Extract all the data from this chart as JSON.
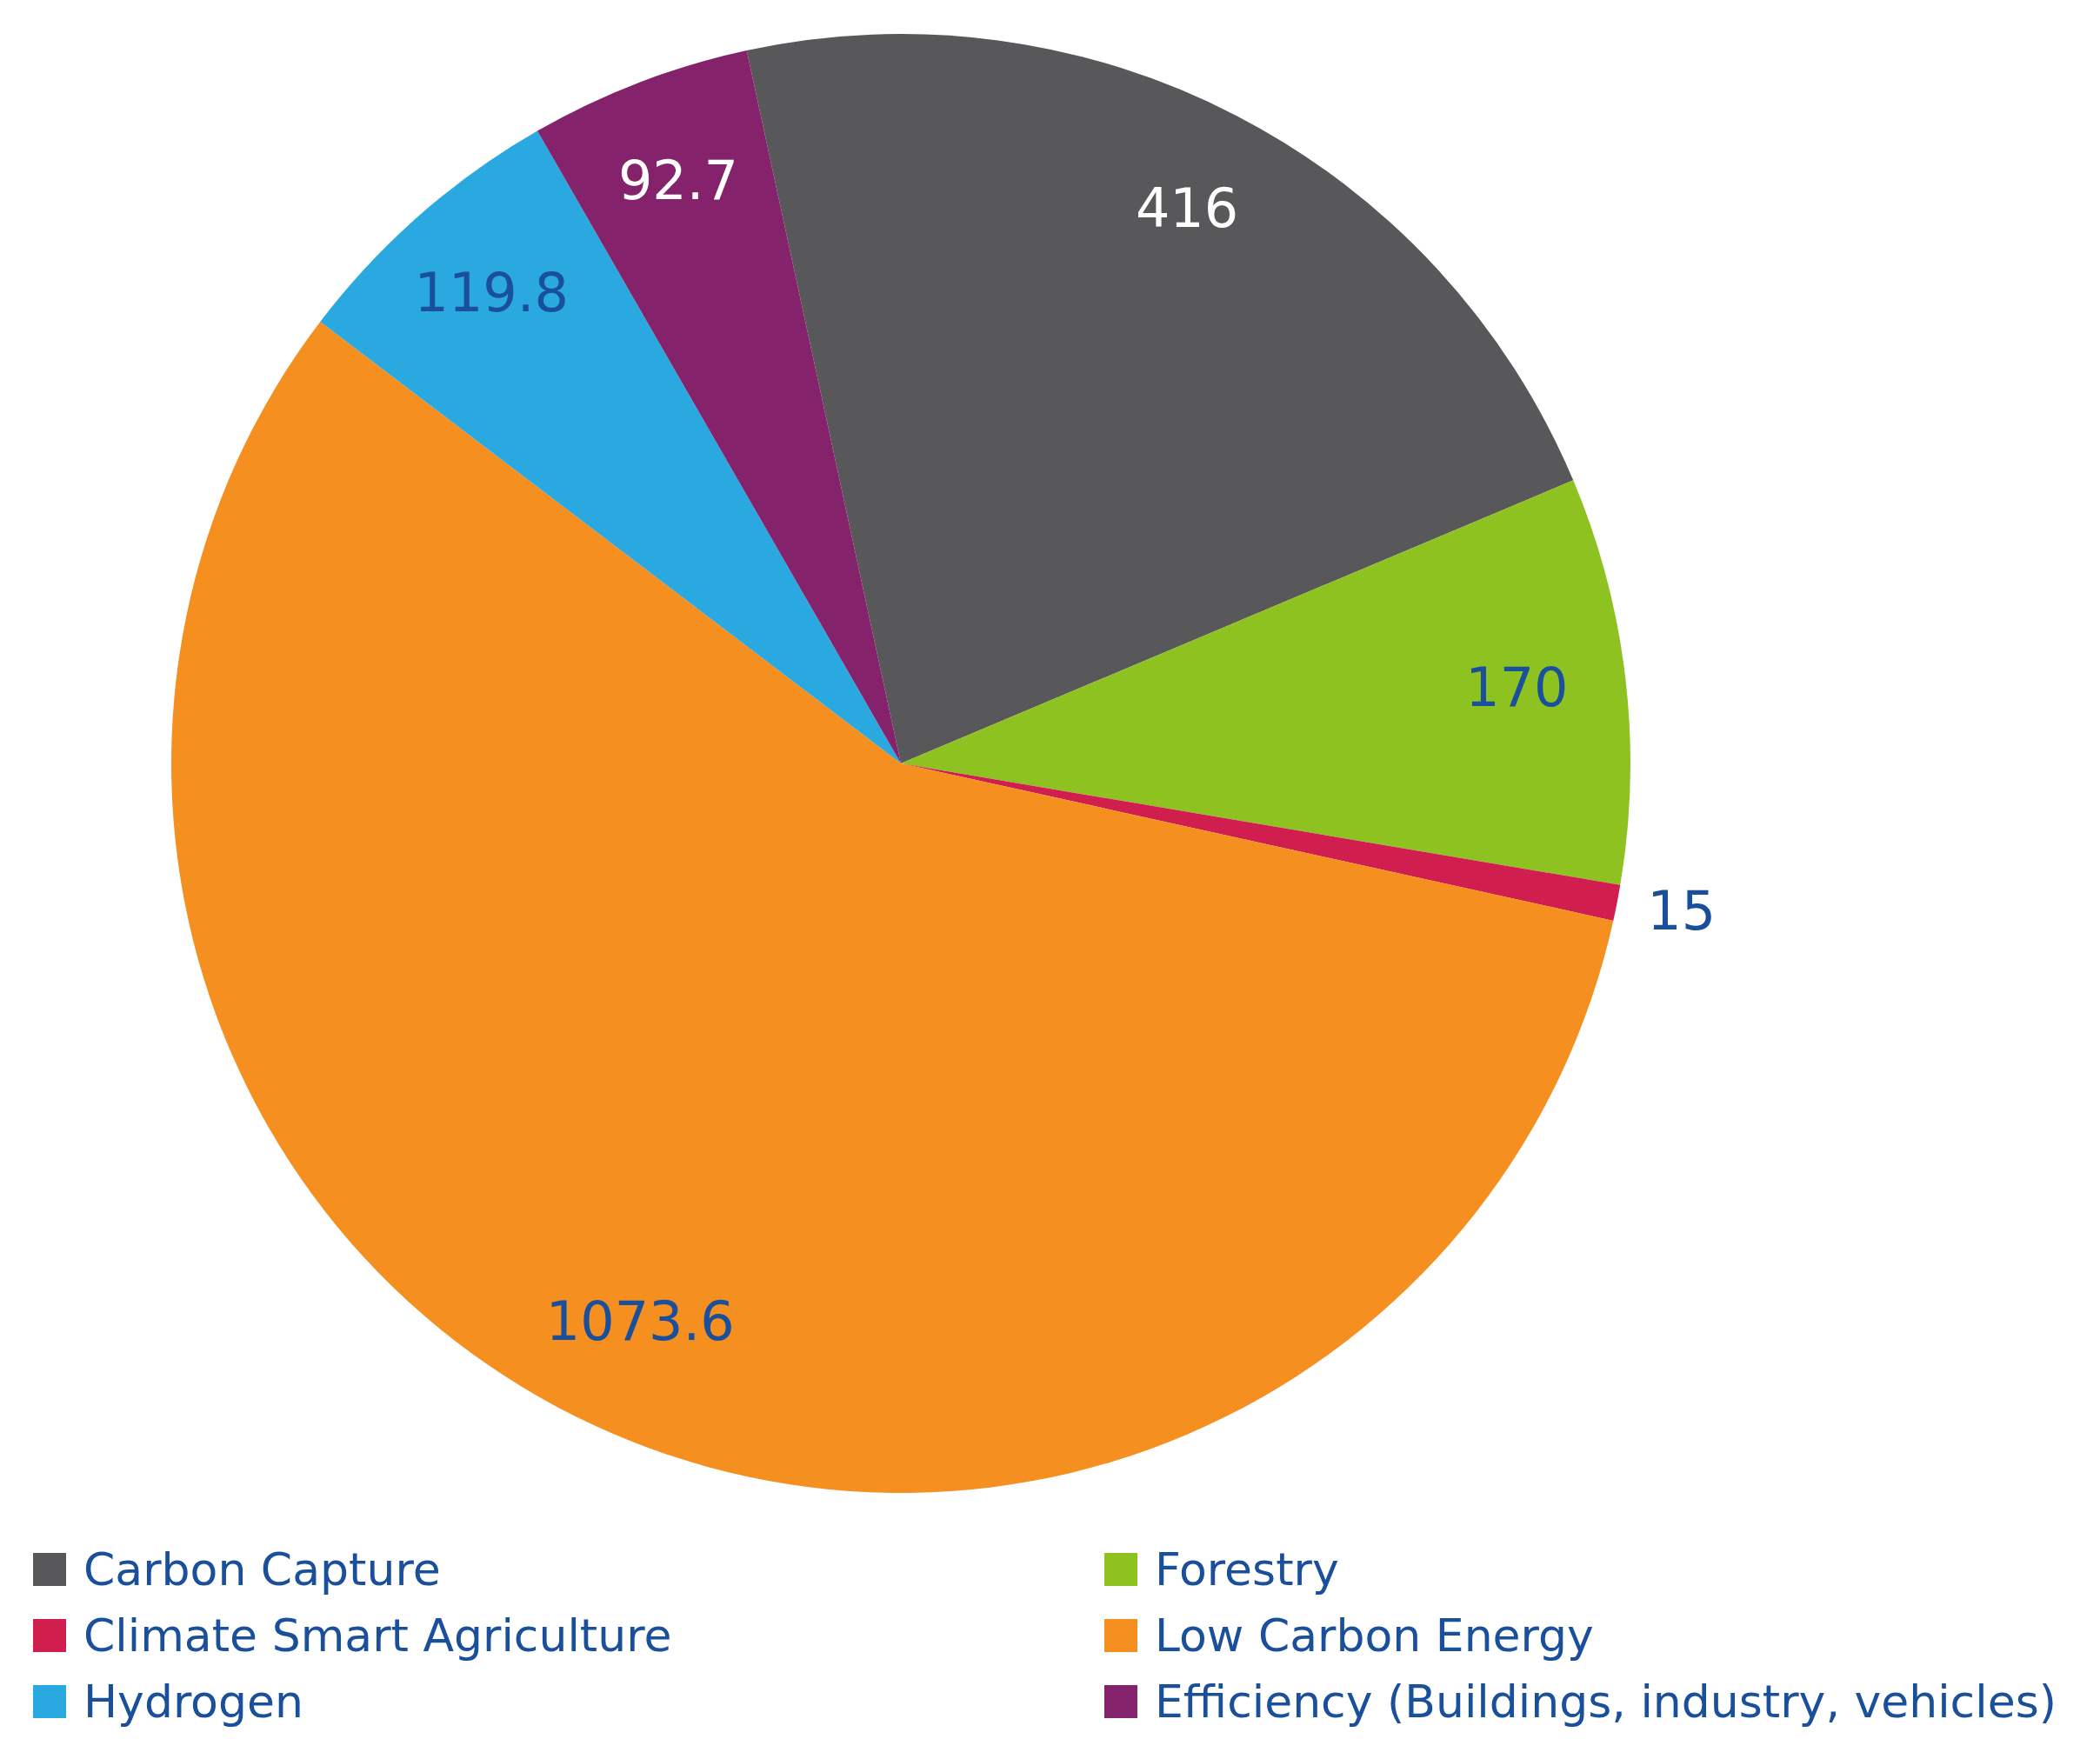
{
  "chart_data": {
    "type": "pie",
    "categories": [
      "Carbon Capture",
      "Forestry",
      "Climate Smart Agriculture",
      "Low Carbon Energy",
      "Hydrogen",
      "Efficiency (Buildings, industry, vehicles)"
    ],
    "values": [
      416,
      170,
      15,
      1073.6,
      119.8,
      92.7
    ],
    "colors": [
      "#58585a",
      "#8dc220",
      "#d01f4e",
      "#f58f20",
      "#2aa8e0",
      "#84236b"
    ],
    "data_labels": true,
    "legend": "bottom"
  }
}
